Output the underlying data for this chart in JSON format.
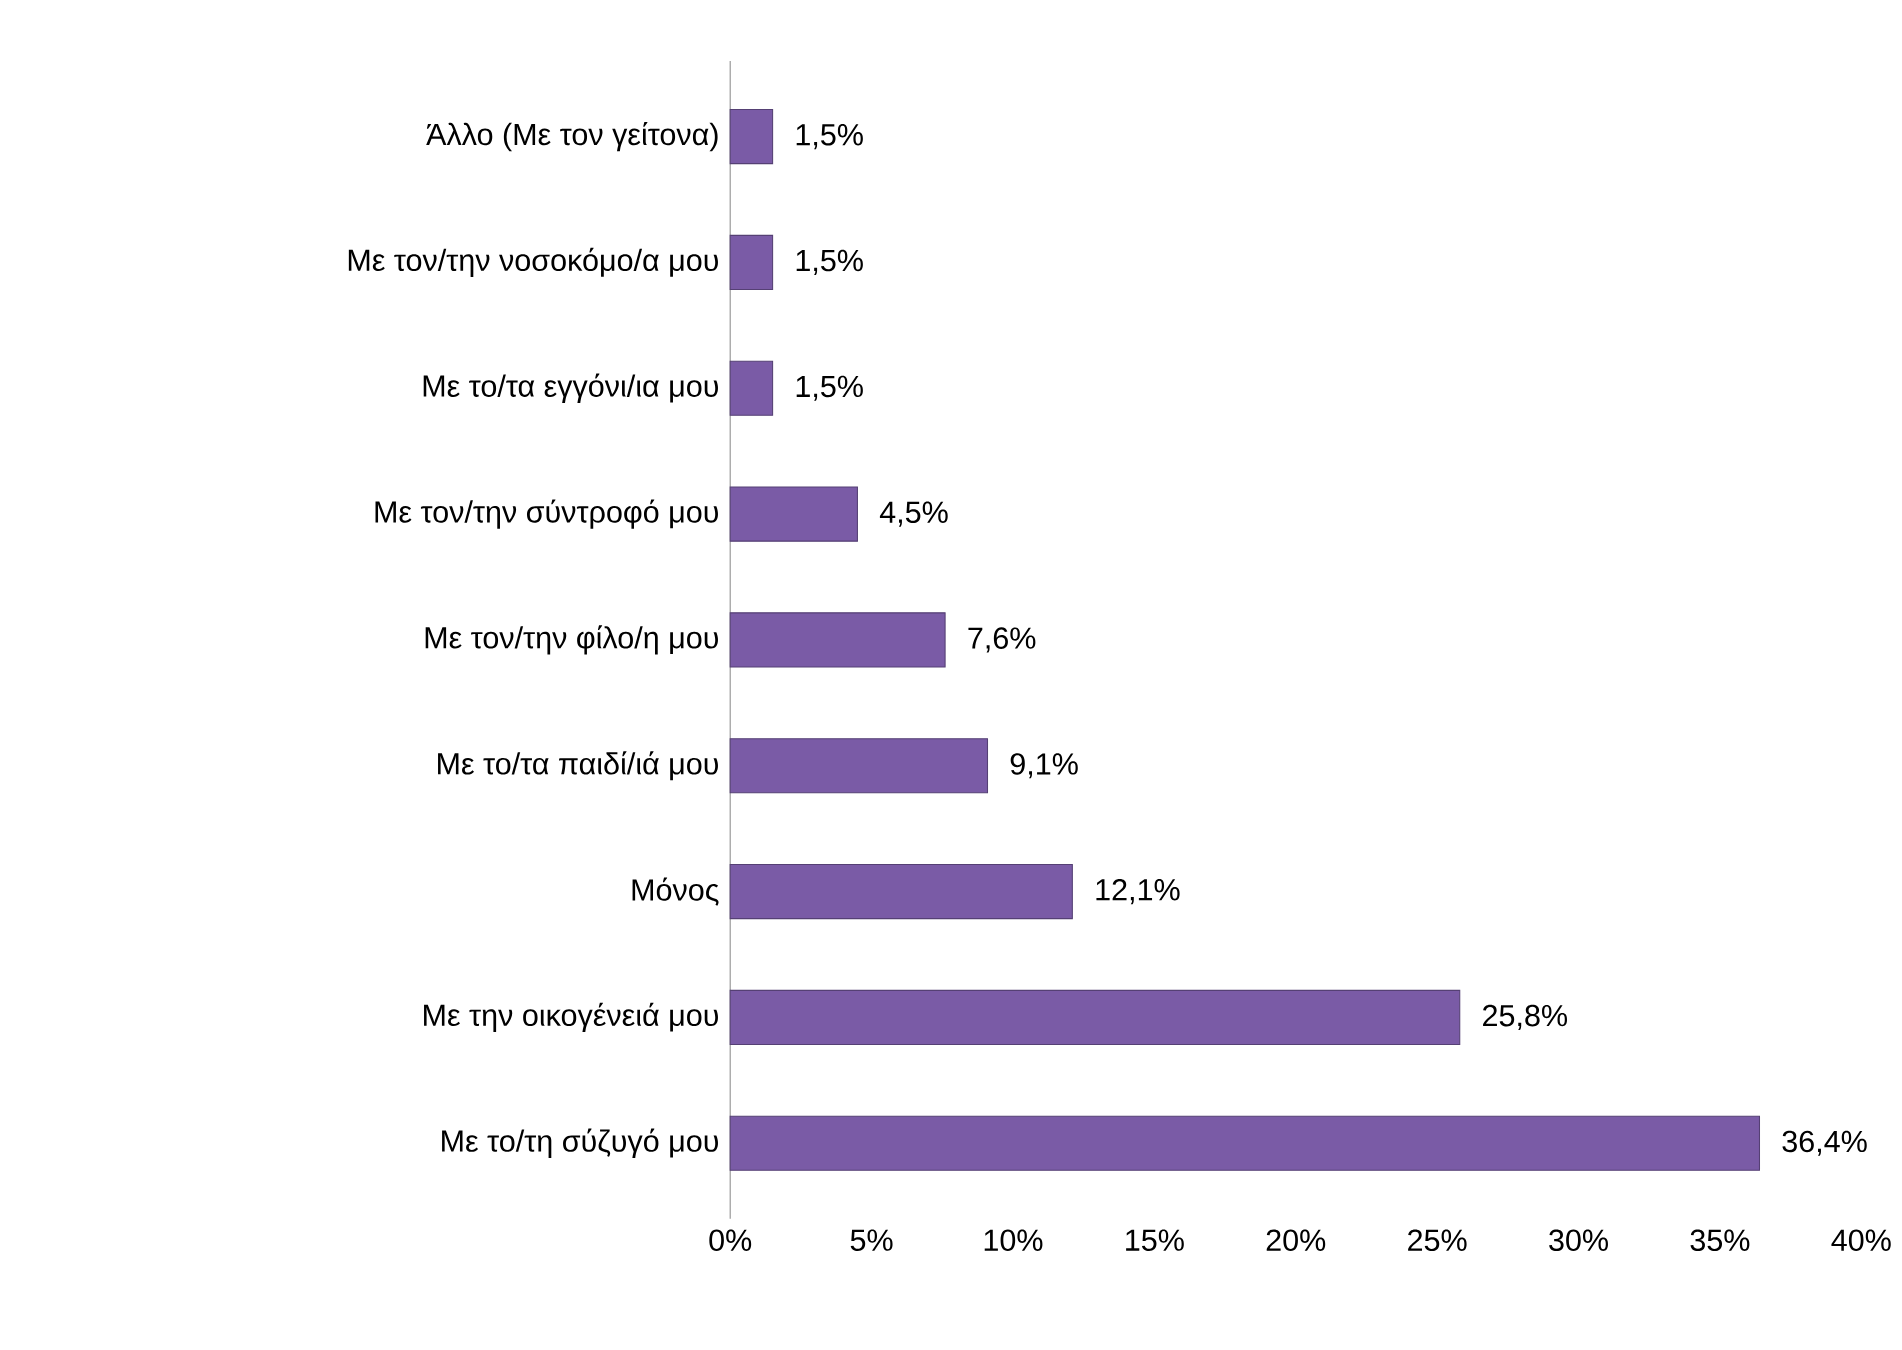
{
  "chart_data": {
    "type": "bar",
    "orientation": "horizontal",
    "categories": [
      "Άλλο (Με τον γείτονα)",
      "Με τον/την νοσοκόμο/α μου",
      "Με το/τα εγγόνι/ια μου",
      "Με τον/την σύντροφό μου",
      "Με τον/την φίλο/η μου",
      "Με το/τα παιδί/ιά μου",
      "Μόνος",
      "Με την οικογένειά μου",
      "Με το/τη σύζυγό μου"
    ],
    "values": [
      1.5,
      1.5,
      1.5,
      4.5,
      7.6,
      9.1,
      12.1,
      25.8,
      36.4
    ],
    "value_labels": [
      "1,5%",
      "1,5%",
      "1,5%",
      "4,5%",
      "7,6%",
      "9,1%",
      "12,1%",
      "25,8%",
      "36,4%"
    ],
    "color": "#7a5ba6",
    "xlim": [
      0,
      40
    ],
    "xticks": [
      {
        "value": 0,
        "label": "0%"
      },
      {
        "value": 5,
        "label": "5%"
      },
      {
        "value": 10,
        "label": "10%"
      },
      {
        "value": 15,
        "label": "15%"
      },
      {
        "value": 20,
        "label": "20%"
      },
      {
        "value": 25,
        "label": "25%"
      },
      {
        "value": 30,
        "label": "30%"
      },
      {
        "value": 35,
        "label": "35%"
      },
      {
        "value": 40,
        "label": "40%"
      }
    ]
  }
}
